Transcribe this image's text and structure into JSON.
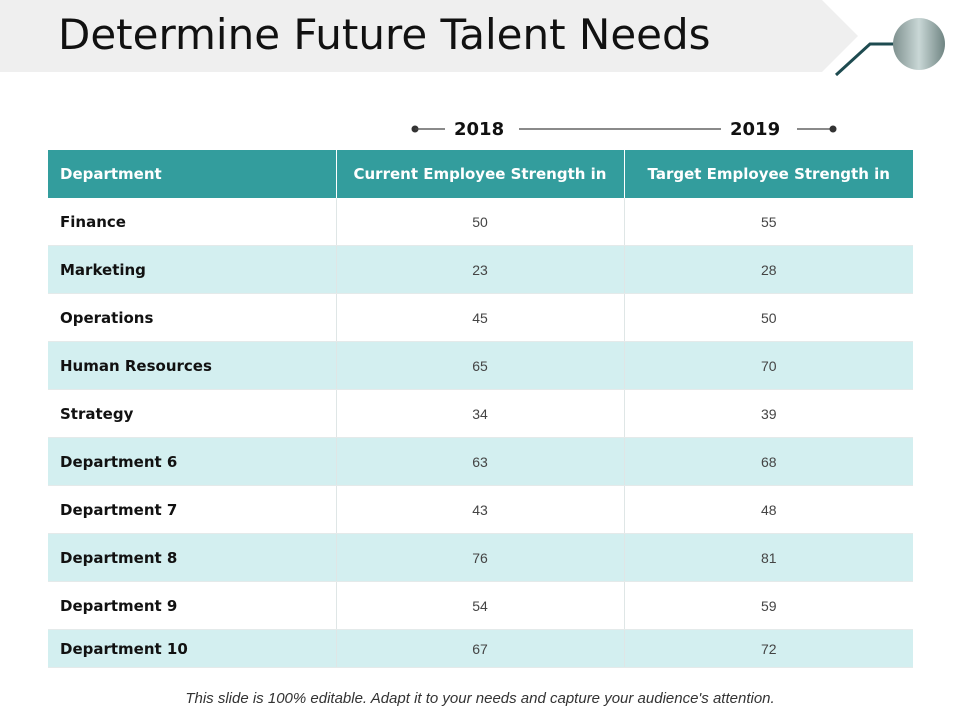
{
  "slide": {
    "title": "Determine Future Talent Needs",
    "footer": "This slide is 100% editable. Adapt it to your needs and capture your audience's attention."
  },
  "timeline": {
    "year_start": "2018",
    "year_end": "2019"
  },
  "table": {
    "headers": [
      "Department",
      "Current Employee Strength in",
      "Target Employee Strength in"
    ],
    "rows": [
      {
        "department": "Finance",
        "current": "50",
        "target": "55"
      },
      {
        "department": "Marketing",
        "current": "23",
        "target": "28"
      },
      {
        "department": "Operations",
        "current": "45",
        "target": "50"
      },
      {
        "department": "Human Resources",
        "current": "65",
        "target": "70"
      },
      {
        "department": "Strategy",
        "current": "34",
        "target": "39"
      },
      {
        "department": "Department 6",
        "current": "63",
        "target": "68"
      },
      {
        "department": "Department 7",
        "current": "43",
        "target": "48"
      },
      {
        "department": "Department 8",
        "current": "76",
        "target": "81"
      },
      {
        "department": "Department 9",
        "current": "54",
        "target": "59"
      },
      {
        "department": "Department 10",
        "current": "67",
        "target": "72"
      }
    ]
  },
  "colors": {
    "header_bg": "#339d9d",
    "alt_row_bg": "#d3eff0",
    "banner_bg": "#efefef",
    "accent_line": "#1e4b50"
  }
}
